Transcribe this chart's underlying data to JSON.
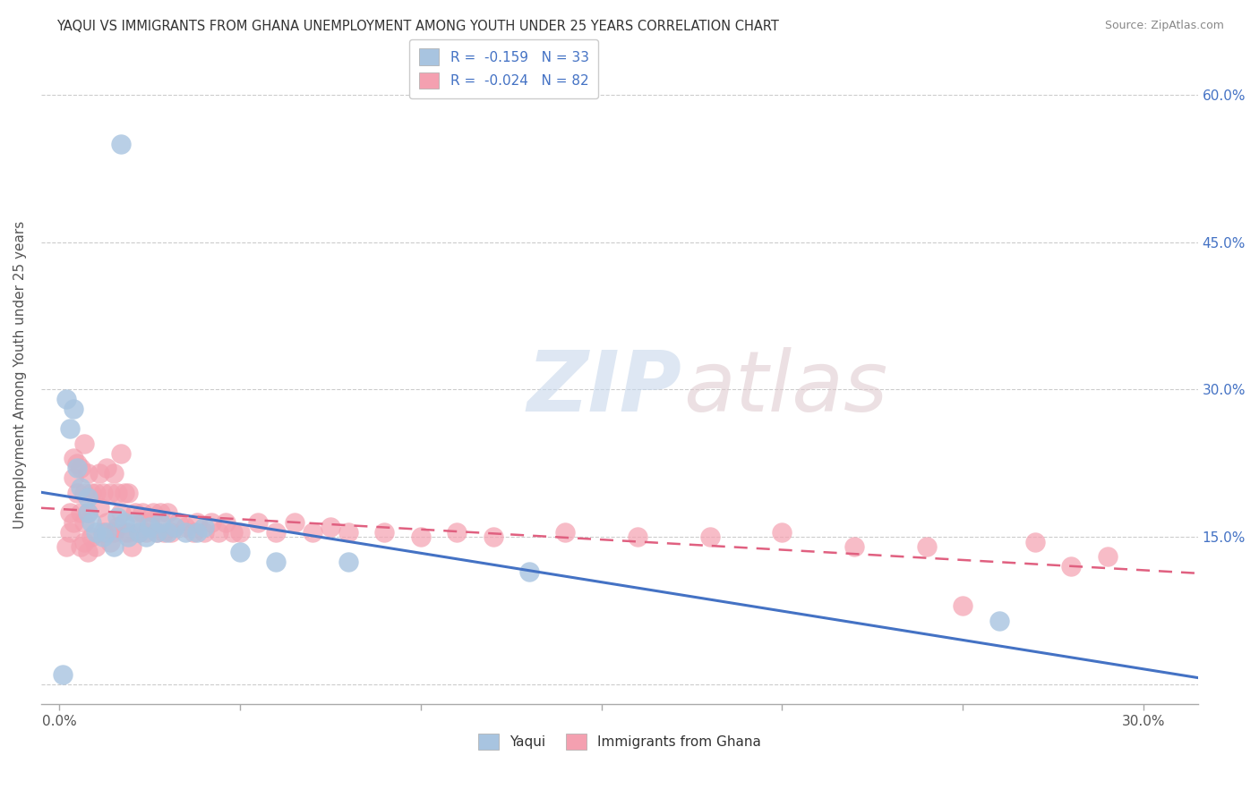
{
  "title": "YAQUI VS IMMIGRANTS FROM GHANA UNEMPLOYMENT AMONG YOUTH UNDER 25 YEARS CORRELATION CHART",
  "source": "Source: ZipAtlas.com",
  "ylabel": "Unemployment Among Youth under 25 years",
  "yticks": [
    0.0,
    0.15,
    0.3,
    0.45,
    0.6
  ],
  "ytick_labels": [
    "",
    "15.0%",
    "30.0%",
    "45.0%",
    "60.0%"
  ],
  "xticks": [
    0.0,
    0.05,
    0.1,
    0.15,
    0.2,
    0.25,
    0.3
  ],
  "xlim": [
    -0.005,
    0.315
  ],
  "ylim": [
    -0.02,
    0.65
  ],
  "legend_r1": "R =  -0.159   N = 33",
  "legend_r2": "R =  -0.024   N = 82",
  "legend_label1": "Yaqui",
  "legend_label2": "Immigrants from Ghana",
  "color_blue": "#a8c4e0",
  "color_pink": "#f4a0b0",
  "line_blue": "#4472c4",
  "line_pink": "#e06080",
  "background_color": "#ffffff",
  "grid_color": "#cccccc",
  "scatter_blue_x": [
    0.017,
    0.002,
    0.004,
    0.003,
    0.005,
    0.006,
    0.008,
    0.008,
    0.009,
    0.01,
    0.012,
    0.013,
    0.015,
    0.016,
    0.018,
    0.019,
    0.021,
    0.022,
    0.024,
    0.025,
    0.027,
    0.028,
    0.03,
    0.032,
    0.035,
    0.038,
    0.04,
    0.05,
    0.06,
    0.08,
    0.13,
    0.26,
    0.001
  ],
  "scatter_blue_y": [
    0.55,
    0.29,
    0.28,
    0.26,
    0.22,
    0.2,
    0.19,
    0.175,
    0.165,
    0.155,
    0.15,
    0.155,
    0.14,
    0.17,
    0.165,
    0.15,
    0.165,
    0.155,
    0.15,
    0.16,
    0.155,
    0.165,
    0.155,
    0.16,
    0.155,
    0.155,
    0.16,
    0.135,
    0.125,
    0.125,
    0.115,
    0.065,
    0.01
  ],
  "scatter_pink_x": [
    0.002,
    0.003,
    0.003,
    0.004,
    0.004,
    0.004,
    0.005,
    0.005,
    0.006,
    0.006,
    0.006,
    0.007,
    0.007,
    0.007,
    0.007,
    0.008,
    0.008,
    0.008,
    0.009,
    0.009,
    0.01,
    0.01,
    0.011,
    0.011,
    0.012,
    0.012,
    0.013,
    0.013,
    0.014,
    0.014,
    0.015,
    0.015,
    0.016,
    0.016,
    0.017,
    0.018,
    0.018,
    0.019,
    0.019,
    0.02,
    0.021,
    0.022,
    0.023,
    0.024,
    0.025,
    0.026,
    0.027,
    0.028,
    0.029,
    0.03,
    0.031,
    0.033,
    0.035,
    0.037,
    0.038,
    0.04,
    0.042,
    0.044,
    0.046,
    0.048,
    0.05,
    0.055,
    0.06,
    0.065,
    0.07,
    0.075,
    0.08,
    0.09,
    0.1,
    0.11,
    0.12,
    0.14,
    0.16,
    0.18,
    0.2,
    0.22,
    0.24,
    0.27,
    0.28,
    0.29,
    0.017,
    0.25
  ],
  "scatter_pink_y": [
    0.14,
    0.155,
    0.175,
    0.165,
    0.21,
    0.23,
    0.195,
    0.225,
    0.14,
    0.175,
    0.22,
    0.145,
    0.165,
    0.195,
    0.245,
    0.135,
    0.175,
    0.215,
    0.15,
    0.195,
    0.14,
    0.195,
    0.18,
    0.215,
    0.155,
    0.195,
    0.165,
    0.22,
    0.145,
    0.195,
    0.155,
    0.215,
    0.16,
    0.195,
    0.175,
    0.155,
    0.195,
    0.155,
    0.195,
    0.14,
    0.175,
    0.155,
    0.175,
    0.155,
    0.165,
    0.175,
    0.155,
    0.175,
    0.155,
    0.175,
    0.155,
    0.165,
    0.16,
    0.155,
    0.165,
    0.155,
    0.165,
    0.155,
    0.165,
    0.155,
    0.155,
    0.165,
    0.155,
    0.165,
    0.155,
    0.16,
    0.155,
    0.155,
    0.15,
    0.155,
    0.15,
    0.155,
    0.15,
    0.15,
    0.155,
    0.14,
    0.14,
    0.145,
    0.12,
    0.13,
    0.235,
    0.08
  ]
}
